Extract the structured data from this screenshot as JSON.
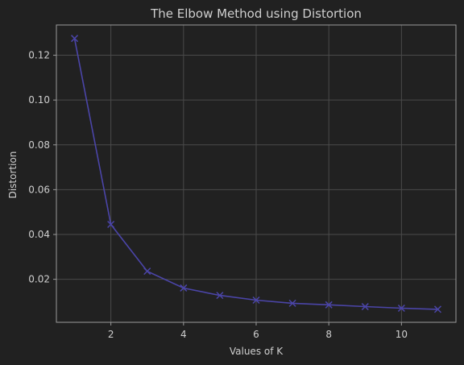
{
  "colors": {
    "background": "#212121",
    "grid": "#4a4a4a",
    "spine": "#9a9a9a",
    "text": "#cfcfcf",
    "series": "#4b45a8"
  },
  "chart_data": {
    "type": "line",
    "title": "The Elbow Method using Distortion",
    "xlabel": "Values of K",
    "ylabel": "Distortion",
    "xlim": [
      0.5,
      11.5
    ],
    "ylim": [
      0.0008,
      0.1335
    ],
    "xticks": [
      2,
      4,
      6,
      8,
      10
    ],
    "yticks": [
      0.02,
      0.04,
      0.06,
      0.08,
      0.1,
      0.12
    ],
    "xtick_labels": [
      "2",
      "4",
      "6",
      "8",
      "10"
    ],
    "ytick_labels": [
      "0.02",
      "0.04",
      "0.06",
      "0.08",
      "0.10",
      "0.12"
    ],
    "grid": true,
    "marker": "x",
    "series": [
      {
        "x": [
          1,
          2,
          3,
          4,
          5,
          6,
          7,
          8,
          9,
          10,
          11
        ],
        "values": [
          0.1275,
          0.0445,
          0.0236,
          0.0161,
          0.0128,
          0.0107,
          0.0093,
          0.0086,
          0.0078,
          0.0071,
          0.0066
        ]
      }
    ]
  }
}
